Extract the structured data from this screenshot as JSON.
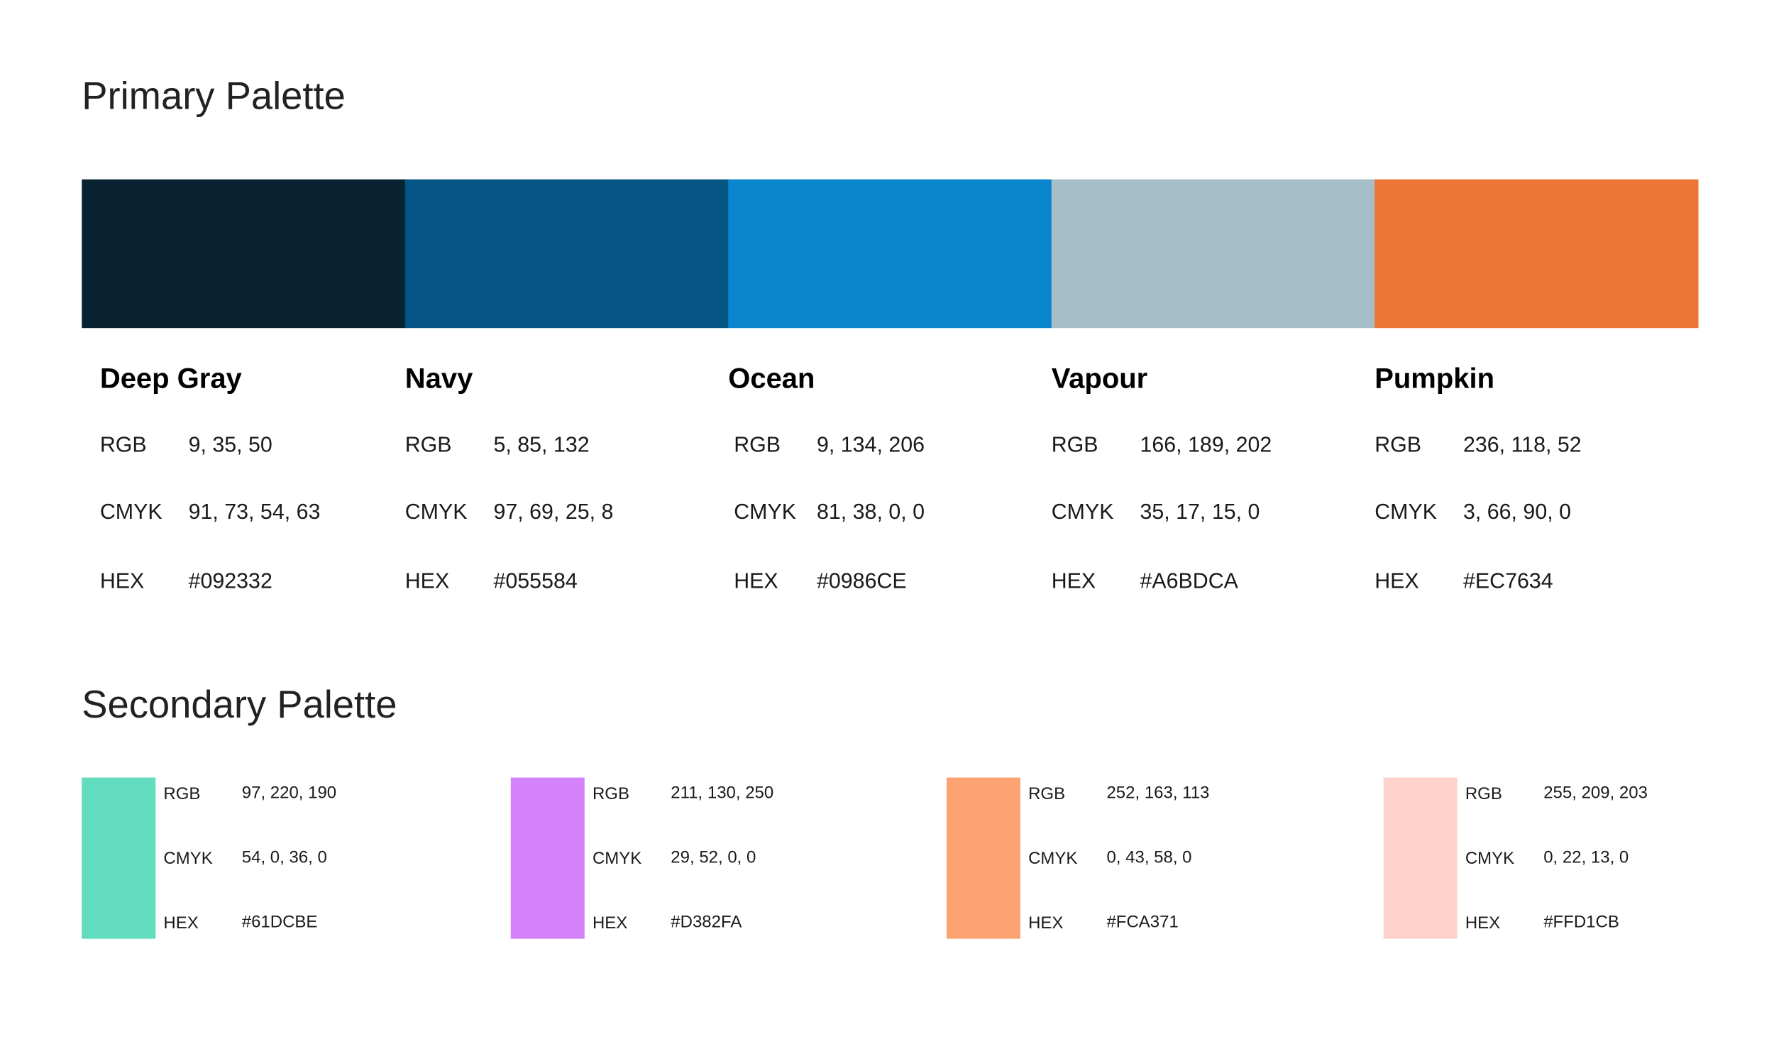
{
  "primary": {
    "title": "Primary Palette",
    "row_labels": [
      "RGB",
      "CMYK",
      "HEX"
    ],
    "colors": [
      {
        "name": "Deep Gray",
        "rgb": "9, 35, 50",
        "cmyk": "91, 73, 54, 63",
        "hex": "#092332"
      },
      {
        "name": "Navy",
        "rgb": "5, 85, 132",
        "cmyk": "97, 69, 25, 8",
        "hex": "#055584"
      },
      {
        "name": "Ocean",
        "rgb": "9, 134, 206",
        "cmyk": "81, 38, 0, 0",
        "hex": "#0986CE"
      },
      {
        "name": "Vapour",
        "rgb": "166, 189, 202",
        "cmyk": "35, 17, 15, 0",
        "hex": "#A6BDCA"
      },
      {
        "name": "Pumpkin",
        "rgb": "236, 118, 52",
        "cmyk": "3, 66, 90, 0",
        "hex": "#EC7634"
      }
    ]
  },
  "secondary": {
    "title": "Secondary Palette",
    "row_labels": [
      "RGB",
      "CMYK",
      "HEX"
    ],
    "colors": [
      {
        "rgb": "97, 220, 190",
        "cmyk": "54, 0, 36, 0",
        "hex": "#61DCBE"
      },
      {
        "rgb": "211, 130, 250",
        "cmyk": "29, 52, 0, 0",
        "hex": "#D382FA"
      },
      {
        "rgb": "252, 163, 113",
        "cmyk": "0, 43, 58, 0",
        "hex": "#FCA371"
      },
      {
        "rgb": "255, 209, 203",
        "cmyk": "0, 22, 13, 0",
        "hex": "#FFD1CB"
      }
    ]
  }
}
